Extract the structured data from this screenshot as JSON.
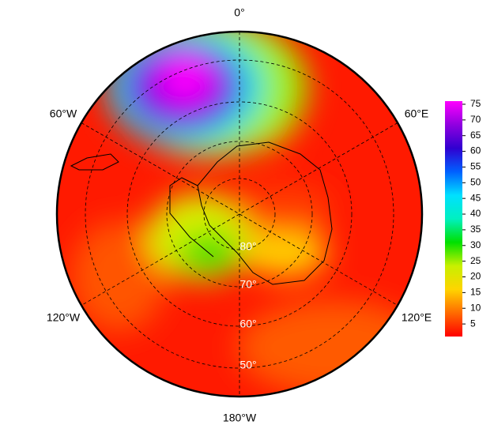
{
  "map": {
    "longitude_labels": [
      "0°",
      "60°E",
      "120°E",
      "180°W",
      "120°W",
      "60°W"
    ],
    "latitude_labels": [
      "80°",
      "70°",
      "60°",
      "50°"
    ]
  },
  "colorbar": {
    "range": [
      1,
      76
    ],
    "ticks": [
      5,
      10,
      15,
      20,
      25,
      30,
      35,
      40,
      45,
      50,
      55,
      60,
      65,
      70,
      75
    ],
    "colors": [
      "#ff0000",
      "#ff6a00",
      "#ffd400",
      "#c8f000",
      "#00e000",
      "#00f0c0",
      "#00e0ff",
      "#0060ff",
      "#3000d0",
      "#9000e0",
      "#ff00ff"
    ]
  }
}
